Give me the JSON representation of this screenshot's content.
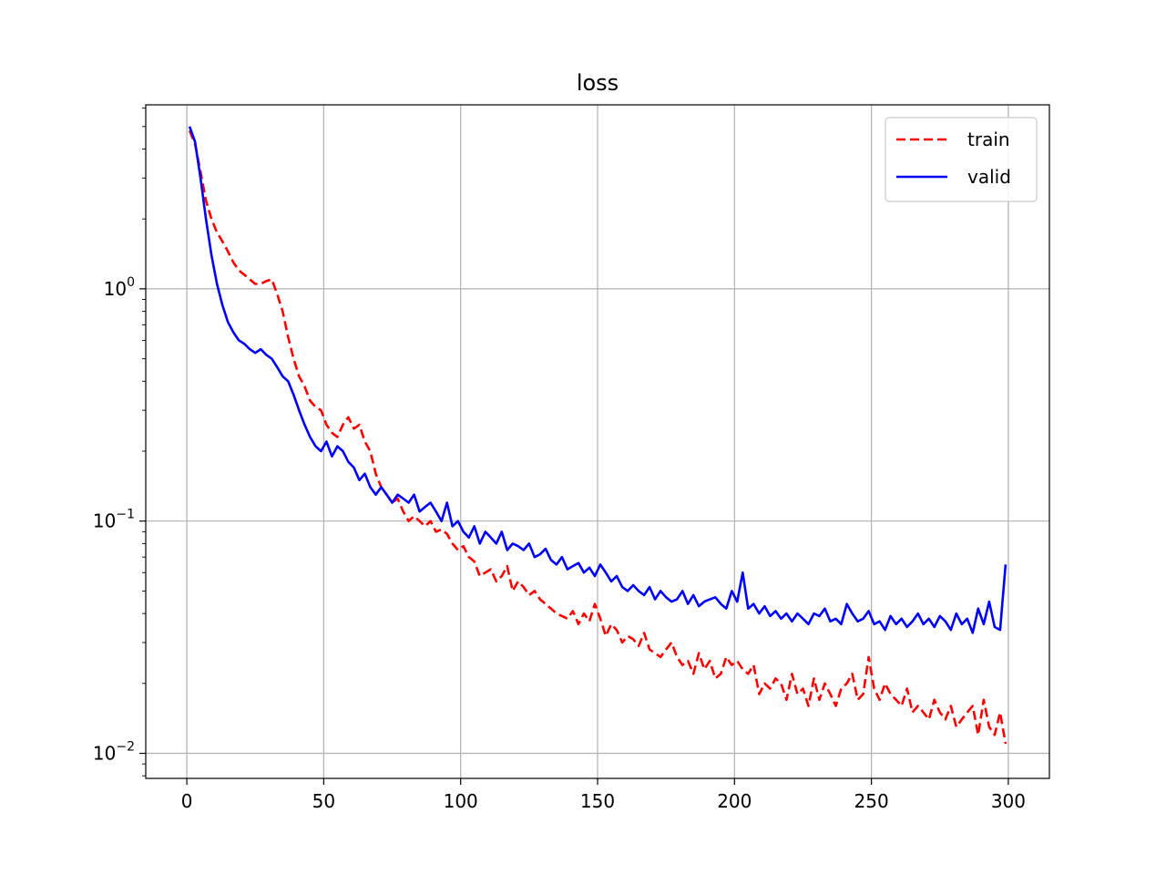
{
  "chart_data": {
    "type": "line",
    "title": "loss",
    "xlabel": "",
    "ylabel": "",
    "xlim": [
      -15,
      315
    ],
    "ylim": [
      0.0078,
      6.2
    ],
    "yscale": "log",
    "grid": true,
    "legend_position": "top-right",
    "x_ticks": [
      {
        "value": 0,
        "label": "0"
      },
      {
        "value": 50,
        "label": "50"
      },
      {
        "value": 100,
        "label": "100"
      },
      {
        "value": 150,
        "label": "150"
      },
      {
        "value": 200,
        "label": "200"
      },
      {
        "value": 250,
        "label": "250"
      },
      {
        "value": 300,
        "label": "300"
      }
    ],
    "y_ticks": [
      {
        "value": 1,
        "base": "10",
        "exp": "0"
      },
      {
        "value": 0.1,
        "base": "10",
        "exp": "−1"
      },
      {
        "value": 0.01,
        "base": "10",
        "exp": "−2"
      }
    ],
    "series": [
      {
        "name": "train",
        "color": "#ff0000",
        "style": "dashed",
        "x": [
          1,
          3,
          5,
          7,
          9,
          11,
          13,
          15,
          17,
          19,
          21,
          23,
          25,
          27,
          29,
          31,
          33,
          35,
          37,
          39,
          41,
          43,
          45,
          47,
          49,
          51,
          53,
          55,
          57,
          59,
          61,
          63,
          65,
          67,
          69,
          71,
          73,
          75,
          77,
          79,
          81,
          83,
          85,
          87,
          89,
          91,
          93,
          95,
          97,
          99,
          101,
          103,
          105,
          107,
          109,
          111,
          113,
          115,
          117,
          119,
          121,
          123,
          125,
          127,
          129,
          131,
          133,
          135,
          137,
          139,
          141,
          143,
          145,
          147,
          149,
          151,
          153,
          155,
          157,
          159,
          161,
          163,
          165,
          167,
          169,
          171,
          173,
          175,
          177,
          179,
          181,
          183,
          185,
          187,
          189,
          191,
          193,
          195,
          197,
          199,
          201,
          203,
          205,
          207,
          209,
          211,
          213,
          215,
          217,
          219,
          221,
          223,
          225,
          227,
          229,
          231,
          233,
          235,
          237,
          239,
          241,
          243,
          245,
          247,
          249,
          251,
          253,
          255,
          257,
          259,
          261,
          263,
          265,
          267,
          269,
          271,
          273,
          275,
          277,
          279,
          281,
          283,
          285,
          287,
          289,
          291,
          293,
          295,
          297,
          299
        ],
        "y": [
          4.8,
          4.2,
          3.2,
          2.4,
          2.0,
          1.75,
          1.6,
          1.45,
          1.3,
          1.2,
          1.15,
          1.1,
          1.05,
          1.05,
          1.08,
          1.1,
          0.95,
          0.8,
          0.62,
          0.5,
          0.42,
          0.38,
          0.33,
          0.31,
          0.3,
          0.26,
          0.24,
          0.23,
          0.26,
          0.28,
          0.25,
          0.26,
          0.22,
          0.2,
          0.16,
          0.14,
          0.13,
          0.12,
          0.125,
          0.11,
          0.1,
          0.105,
          0.1,
          0.095,
          0.1,
          0.09,
          0.092,
          0.088,
          0.08,
          0.075,
          0.078,
          0.07,
          0.067,
          0.058,
          0.06,
          0.062,
          0.055,
          0.058,
          0.064,
          0.05,
          0.055,
          0.052,
          0.048,
          0.05,
          0.046,
          0.044,
          0.042,
          0.04,
          0.039,
          0.038,
          0.041,
          0.036,
          0.04,
          0.037,
          0.044,
          0.038,
          0.032,
          0.036,
          0.034,
          0.03,
          0.032,
          0.031,
          0.029,
          0.033,
          0.028,
          0.027,
          0.026,
          0.028,
          0.03,
          0.026,
          0.024,
          0.025,
          0.022,
          0.027,
          0.023,
          0.025,
          0.021,
          0.022,
          0.026,
          0.024,
          0.025,
          0.023,
          0.022,
          0.024,
          0.018,
          0.02,
          0.019,
          0.021,
          0.02,
          0.017,
          0.022,
          0.018,
          0.019,
          0.016,
          0.021,
          0.017,
          0.02,
          0.018,
          0.016,
          0.019,
          0.02,
          0.022,
          0.017,
          0.018,
          0.026,
          0.019,
          0.017,
          0.02,
          0.018,
          0.017,
          0.016,
          0.019,
          0.015,
          0.016,
          0.015,
          0.014,
          0.017,
          0.015,
          0.014,
          0.016,
          0.013,
          0.014,
          0.015,
          0.016,
          0.012,
          0.017,
          0.013,
          0.012,
          0.015,
          0.011
        ]
      },
      {
        "name": "valid",
        "color": "#0000ff",
        "style": "solid",
        "x": [
          1,
          3,
          5,
          7,
          9,
          11,
          13,
          15,
          17,
          19,
          21,
          23,
          25,
          27,
          29,
          31,
          33,
          35,
          37,
          39,
          41,
          43,
          45,
          47,
          49,
          51,
          53,
          55,
          57,
          59,
          61,
          63,
          65,
          67,
          69,
          71,
          73,
          75,
          77,
          79,
          81,
          83,
          85,
          87,
          89,
          91,
          93,
          95,
          97,
          99,
          101,
          103,
          105,
          107,
          109,
          111,
          113,
          115,
          117,
          119,
          121,
          123,
          125,
          127,
          129,
          131,
          133,
          135,
          137,
          139,
          141,
          143,
          145,
          147,
          149,
          151,
          153,
          155,
          157,
          159,
          161,
          163,
          165,
          167,
          169,
          171,
          173,
          175,
          177,
          179,
          181,
          183,
          185,
          187,
          189,
          191,
          193,
          195,
          197,
          199,
          201,
          203,
          205,
          207,
          209,
          211,
          213,
          215,
          217,
          219,
          221,
          223,
          225,
          227,
          229,
          231,
          233,
          235,
          237,
          239,
          241,
          243,
          245,
          247,
          249,
          251,
          253,
          255,
          257,
          259,
          261,
          263,
          265,
          267,
          269,
          271,
          273,
          275,
          277,
          279,
          281,
          283,
          285,
          287,
          289,
          291,
          293,
          295,
          297,
          299
        ],
        "y": [
          5.0,
          4.3,
          3.0,
          2.0,
          1.4,
          1.05,
          0.85,
          0.72,
          0.65,
          0.6,
          0.58,
          0.55,
          0.53,
          0.55,
          0.52,
          0.5,
          0.46,
          0.42,
          0.4,
          0.35,
          0.3,
          0.26,
          0.23,
          0.21,
          0.2,
          0.22,
          0.19,
          0.21,
          0.2,
          0.18,
          0.17,
          0.15,
          0.16,
          0.14,
          0.13,
          0.14,
          0.13,
          0.12,
          0.13,
          0.125,
          0.12,
          0.13,
          0.11,
          0.115,
          0.12,
          0.11,
          0.1,
          0.12,
          0.095,
          0.1,
          0.09,
          0.085,
          0.095,
          0.08,
          0.09,
          0.085,
          0.08,
          0.09,
          0.075,
          0.08,
          0.078,
          0.075,
          0.08,
          0.07,
          0.072,
          0.076,
          0.068,
          0.065,
          0.07,
          0.062,
          0.064,
          0.066,
          0.06,
          0.063,
          0.058,
          0.065,
          0.06,
          0.055,
          0.058,
          0.052,
          0.05,
          0.053,
          0.05,
          0.048,
          0.052,
          0.046,
          0.05,
          0.047,
          0.045,
          0.046,
          0.05,
          0.044,
          0.048,
          0.043,
          0.045,
          0.046,
          0.047,
          0.044,
          0.042,
          0.05,
          0.045,
          0.06,
          0.042,
          0.044,
          0.04,
          0.043,
          0.039,
          0.041,
          0.038,
          0.04,
          0.037,
          0.04,
          0.038,
          0.036,
          0.04,
          0.039,
          0.042,
          0.037,
          0.038,
          0.036,
          0.044,
          0.04,
          0.037,
          0.038,
          0.041,
          0.036,
          0.037,
          0.034,
          0.039,
          0.036,
          0.038,
          0.035,
          0.037,
          0.04,
          0.036,
          0.038,
          0.035,
          0.039,
          0.037,
          0.034,
          0.04,
          0.036,
          0.038,
          0.033,
          0.042,
          0.036,
          0.045,
          0.035,
          0.034,
          0.065
        ]
      }
    ]
  }
}
